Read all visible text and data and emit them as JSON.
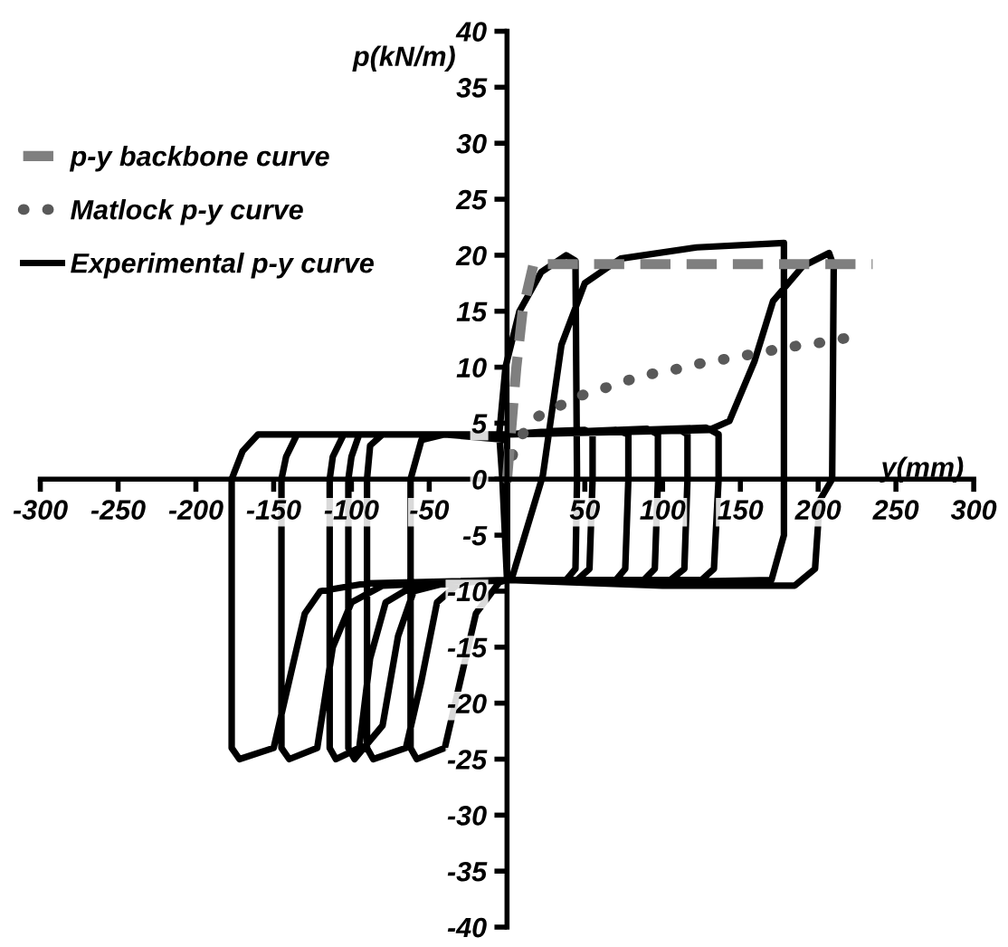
{
  "chart_data": {
    "type": "line",
    "xlabel": "y(mm)",
    "ylabel": "p(kN/m)",
    "xlim": [
      -300,
      300
    ],
    "ylim": [
      -40,
      40
    ],
    "xticks": [
      -300,
      -250,
      -200,
      -150,
      -100,
      -50,
      {
        "value": 0,
        "label": null
      },
      50,
      100,
      150,
      200,
      250,
      300
    ],
    "yticks": [
      -40,
      -35,
      -30,
      -25,
      -20,
      -15,
      -10,
      -5,
      0,
      5,
      10,
      15,
      20,
      25,
      30,
      35,
      40
    ],
    "grid": false,
    "legend": "top left",
    "marker": "none",
    "series": [
      {
        "name": "p-y backbone curve",
        "color": "#7f7f7f",
        "line_style": "dashed",
        "x": [
          0,
          3,
          6,
          10,
          17,
          235
        ],
        "values": [
          0,
          5,
          10,
          15,
          19.2,
          19.2
        ]
      },
      {
        "name": "Matlock p-y curve",
        "color": "#595959",
        "line_style": "dotted",
        "x": [
          0,
          5,
          17,
          33,
          46,
          62,
          77,
          93,
          108,
          123,
          139,
          155,
          170,
          186,
          202,
          218
        ],
        "values": [
          0,
          3,
          5.4,
          6.5,
          7.4,
          8.1,
          8.8,
          9.4,
          9.8,
          10.3,
          10.7,
          11.1,
          11.5,
          11.9,
          12.2,
          12.6
        ]
      },
      {
        "name": "Experimental p-y curve",
        "color": "#000000",
        "line_style": "solid",
        "x": [
          0,
          0,
          30,
          50,
          55,
          55,
          53,
          45,
          0,
          0,
          0,
          -40,
          -55,
          -62,
          -62,
          -58,
          -40,
          -30,
          -20,
          -5,
          0,
          0,
          70,
          78,
          78,
          76,
          70,
          0,
          0,
          -80,
          -88,
          -90,
          -90,
          -86,
          -65,
          -55,
          -45,
          -30,
          0,
          0,
          90,
          97,
          97,
          95,
          88,
          0,
          0,
          -95,
          -100,
          -102,
          -102,
          -98,
          -80,
          -70,
          -60,
          -40,
          0,
          0,
          110,
          116,
          116,
          114,
          105,
          0,
          0,
          -105,
          -112,
          -114,
          -114,
          -110,
          -95,
          -88,
          -78,
          -60,
          0,
          0,
          128,
          136,
          136,
          133,
          125,
          0,
          0,
          -135,
          -142,
          -145,
          -145,
          -140,
          -122,
          -112,
          -100,
          -80,
          0,
          -3,
          -5,
          -1,
          8,
          22,
          38,
          44,
          45,
          44,
          38,
          0,
          0,
          -160,
          -170,
          -177,
          -177,
          -172,
          -150,
          -140,
          -130,
          -120,
          -90,
          0,
          3,
          23,
          35,
          50,
          73,
          122,
          178,
          178,
          170,
          100,
          0,
          0,
          130,
          143,
          159,
          171,
          190,
          207,
          210,
          209,
          201,
          198,
          185,
          100,
          0
        ],
        "values": [
          0,
          4,
          4.3,
          4.4,
          4,
          0,
          -8,
          -9,
          -9,
          -3,
          3.5,
          4,
          3.5,
          0,
          -24,
          -25,
          -24,
          -18,
          -12,
          -9.2,
          -9,
          4,
          4.4,
          4,
          0,
          -8,
          -9,
          -9,
          4,
          4,
          3,
          0,
          -24,
          -25,
          -24,
          -18,
          -11,
          -9.2,
          -9,
          4,
          4.5,
          4,
          0,
          -8,
          -9,
          -9,
          4,
          4,
          2,
          0,
          -24,
          -25,
          -22,
          -14,
          -10,
          -9.3,
          -9,
          4,
          4.5,
          4,
          0,
          -8,
          -9,
          -9,
          4,
          4,
          2,
          0,
          -24,
          -25,
          -24,
          -16,
          -11,
          -9.5,
          -9,
          4,
          4.6,
          4,
          0,
          -8,
          -9,
          -9,
          4,
          4,
          2,
          0,
          -24,
          -25,
          -24,
          -15,
          -11,
          -9.5,
          -9,
          0,
          4,
          10,
          15,
          18.5,
          20,
          19.5,
          0,
          -8,
          -9,
          -9,
          4,
          4,
          2.5,
          0,
          -24,
          -25,
          -24,
          -18,
          -12,
          -10,
          -9.3,
          -9,
          -8.9,
          0.3,
          12,
          17.5,
          19.7,
          20.7,
          21.1,
          -5,
          -9,
          -9.2,
          -9,
          4,
          4.4,
          5.2,
          10.5,
          15.9,
          19,
          20.2,
          19,
          0,
          -1.9,
          -8,
          -9.5,
          -9.5,
          -9
        ]
      }
    ]
  }
}
